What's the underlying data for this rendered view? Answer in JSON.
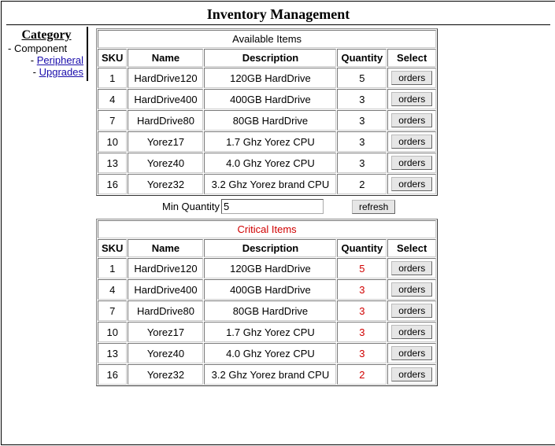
{
  "page_title": "Inventory Management",
  "sidebar": {
    "header": "Category",
    "items": [
      {
        "label": "Component",
        "link": false
      },
      {
        "label": "Peripheral",
        "link": true
      },
      {
        "label": "Upgrades",
        "link": true
      }
    ]
  },
  "tables": {
    "headers": [
      "SKU",
      "Name",
      "Description",
      "Quantity",
      "Select"
    ],
    "available": {
      "caption": "Available Items",
      "rows": [
        {
          "sku": "1",
          "name": "HardDrive120",
          "desc": "120GB HardDrive",
          "qty": "5"
        },
        {
          "sku": "4",
          "name": "HardDrive400",
          "desc": "400GB HardDrive",
          "qty": "3"
        },
        {
          "sku": "7",
          "name": "HardDrive80",
          "desc": "80GB HardDrive",
          "qty": "3"
        },
        {
          "sku": "10",
          "name": "Yorez17",
          "desc": "1.7 Ghz Yorez CPU",
          "qty": "3"
        },
        {
          "sku": "13",
          "name": "Yorez40",
          "desc": "4.0 Ghz Yorez CPU",
          "qty": "3"
        },
        {
          "sku": "16",
          "name": "Yorez32",
          "desc": "3.2 Ghz Yorez brand CPU",
          "qty": "2"
        }
      ]
    },
    "critical": {
      "caption": "Critical Items",
      "rows": [
        {
          "sku": "1",
          "name": "HardDrive120",
          "desc": "120GB HardDrive",
          "qty": "5"
        },
        {
          "sku": "4",
          "name": "HardDrive400",
          "desc": "400GB HardDrive",
          "qty": "3"
        },
        {
          "sku": "7",
          "name": "HardDrive80",
          "desc": "80GB HardDrive",
          "qty": "3"
        },
        {
          "sku": "10",
          "name": "Yorez17",
          "desc": "1.7 Ghz Yorez CPU",
          "qty": "3"
        },
        {
          "sku": "13",
          "name": "Yorez40",
          "desc": "4.0 Ghz Yorez CPU",
          "qty": "3"
        },
        {
          "sku": "16",
          "name": "Yorez32",
          "desc": "3.2 Ghz Yorez brand CPU",
          "qty": "2"
        }
      ]
    },
    "button_label": "orders"
  },
  "controls": {
    "min_qty_label": "Min Quantity",
    "min_qty_value": "5",
    "refresh_label": "refresh"
  },
  "col_widths": {
    "sku": 36,
    "name": 96,
    "desc": 168,
    "qty": 58,
    "select": 54
  }
}
